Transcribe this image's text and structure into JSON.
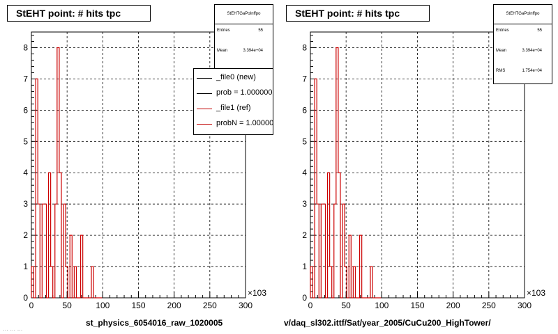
{
  "chart_data": [
    {
      "type": "histogram-step",
      "title": "StEHT point: # hits tpc",
      "xlabel": "st_physics_6054016_raw_1020005",
      "x_multiplier": "×10^3",
      "xlim": [
        0,
        300
      ],
      "ylim": [
        0,
        8.5
      ],
      "x_ticks": [
        "0",
        "50",
        "100",
        "150",
        "200",
        "250",
        "300"
      ],
      "y_ticks": [
        "0",
        "1",
        "2",
        "3",
        "4",
        "5",
        "6",
        "7",
        "8"
      ],
      "grid": true,
      "bin_width": 3,
      "x_start": 0,
      "values": [
        1,
        0,
        7,
        3,
        0,
        3,
        3,
        0,
        4,
        1,
        0,
        3,
        8,
        4,
        0,
        3,
        1,
        0,
        2,
        0,
        1,
        0,
        0,
        2,
        0,
        0,
        0,
        0,
        1,
        0,
        0,
        0,
        0
      ],
      "stats": {
        "name": "StEHTGaPoInffpo",
        "entries_label": "Entries",
        "entries": "55",
        "mean_label": "Mean",
        "mean": "3.394e+04"
      },
      "legend": [
        {
          "label": "_file0 (new)",
          "color": "#000000"
        },
        {
          "label": "prob = 1.000000",
          "color": "#000000"
        },
        {
          "label": "_file1 (ref)",
          "color": "#c00000"
        },
        {
          "label": "probN = 1.000000",
          "color": "#c00000"
        }
      ]
    },
    {
      "type": "histogram-step",
      "title": "StEHT point: # hits tpc",
      "xlabel": "v/daq_sl302.ittf/Sat/year_2005/CuCu200_HighTower/",
      "x_multiplier": "×10^3",
      "xlim": [
        0,
        300
      ],
      "ylim": [
        0,
        8.5
      ],
      "x_ticks": [
        "0",
        "50",
        "100",
        "150",
        "200",
        "250",
        "300"
      ],
      "y_ticks": [
        "0",
        "1",
        "2",
        "3",
        "4",
        "5",
        "6",
        "7",
        "8"
      ],
      "grid": true,
      "bin_width": 3,
      "x_start": 0,
      "values": [
        1,
        0,
        7,
        3,
        0,
        3,
        3,
        0,
        4,
        1,
        0,
        3,
        8,
        4,
        0,
        3,
        1,
        0,
        2,
        0,
        1,
        0,
        0,
        2,
        0,
        0,
        0,
        0,
        1,
        0,
        0,
        0,
        0
      ],
      "stats": {
        "name": "StEHTGaPoInffpo",
        "entries_label": "Entries",
        "entries": "55",
        "mean_label": "Mean",
        "mean": "3.394e+04",
        "rms_label": "RMS",
        "rms": "1.754e+04"
      }
    }
  ],
  "colors": {
    "hist": "#cc0000",
    "grid": "#000000",
    "frame": "#000000"
  },
  "footer": "… … …"
}
